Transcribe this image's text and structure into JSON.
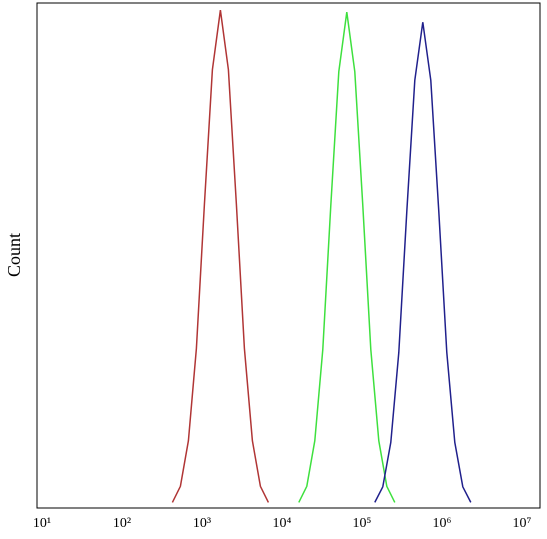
{
  "chart_data": {
    "type": "line",
    "ylabel": "Count",
    "xscale": "log",
    "xlim": [
      10,
      10000000
    ],
    "xticks": [
      {
        "value": 10,
        "label": "10¹"
      },
      {
        "value": 100,
        "label": "10²"
      },
      {
        "value": 1000,
        "label": "10³"
      },
      {
        "value": 10000,
        "label": "10⁴"
      },
      {
        "value": 100000,
        "label": "10⁵"
      },
      {
        "value": 1000000,
        "label": "10⁶"
      },
      {
        "value": 10000000,
        "label": "10⁷"
      }
    ],
    "ylim": [
      0,
      100
    ],
    "series": [
      {
        "color": "#b03535",
        "x": [
          427,
          537,
          676,
          851,
          1072,
          1349,
          1698,
          2138,
          2692,
          3388,
          4266,
          5370,
          6761
        ],
        "values": [
          1.1,
          4.3,
          13.3,
          31.6,
          60.1,
          86.8,
          98.6,
          86.8,
          60.1,
          31.6,
          13.3,
          4.3,
          1.1
        ]
      },
      {
        "color": "#3ee03e",
        "x": [
          16218,
          20417,
          25704,
          32359,
          40738,
          51286,
          64565,
          81283,
          102329,
          128825,
          162181,
          204174,
          257040
        ],
        "values": [
          1.1,
          4.3,
          13.3,
          31.4,
          59.9,
          86.4,
          98.2,
          86.4,
          59.9,
          31.4,
          13.3,
          4.3,
          1.1
        ]
      },
      {
        "color": "#20208c",
        "x": [
          144544,
          181970,
          229087,
          288403,
          363078,
          457088,
          575440,
          724436,
          912011,
          1148154,
          1445440,
          1819701,
          2290868
        ],
        "values": [
          1.1,
          4.2,
          13.0,
          30.8,
          58.7,
          84.7,
          96.2,
          84.7,
          58.7,
          30.8,
          13.0,
          4.2,
          1.1
        ]
      }
    ]
  }
}
